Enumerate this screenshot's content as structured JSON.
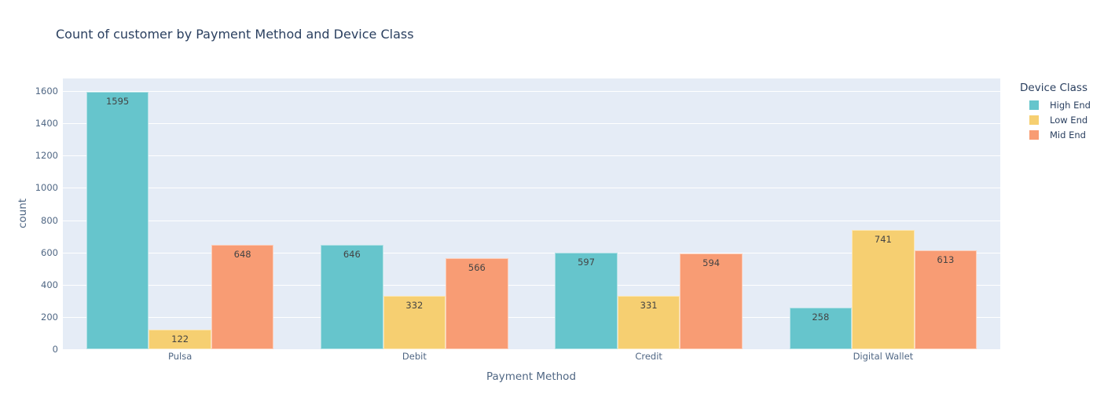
{
  "chart": {
    "title": "Count of customer by Payment Method and Device Class",
    "ylabel": "count",
    "xlabel": "Payment Method",
    "legend_title": "Device Class",
    "yticks": [
      "0",
      "200",
      "400",
      "600",
      "800",
      "1000",
      "1200",
      "1400",
      "1600"
    ],
    "categories": [
      "Pulsa",
      "Debit",
      "Credit",
      "Digital Wallet"
    ],
    "legend": [
      {
        "label": "High End",
        "color": "#66c5cc"
      },
      {
        "label": "Low End",
        "color": "#f6cf71"
      },
      {
        "label": "Mid End",
        "color": "#f89c74"
      }
    ]
  },
  "chart_data": {
    "type": "bar",
    "title": "Count of customer by Payment Method and Device Class",
    "xlabel": "Payment Method",
    "ylabel": "count",
    "categories": [
      "Pulsa",
      "Debit",
      "Credit",
      "Digital Wallet"
    ],
    "series": [
      {
        "name": "High End",
        "color": "#66c5cc",
        "values": [
          1595,
          646,
          597,
          258
        ]
      },
      {
        "name": "Low End",
        "color": "#f6cf71",
        "values": [
          122,
          332,
          331,
          741
        ]
      },
      {
        "name": "Mid End",
        "color": "#f89c74",
        "values": [
          648,
          566,
          594,
          613
        ]
      }
    ],
    "ylim": [
      0,
      1678
    ],
    "yticks": [
      0,
      200,
      400,
      600,
      800,
      1000,
      1200,
      1400,
      1600
    ],
    "grid": true,
    "legend_title": "Device Class",
    "legend_position": "right",
    "barmode": "group"
  }
}
